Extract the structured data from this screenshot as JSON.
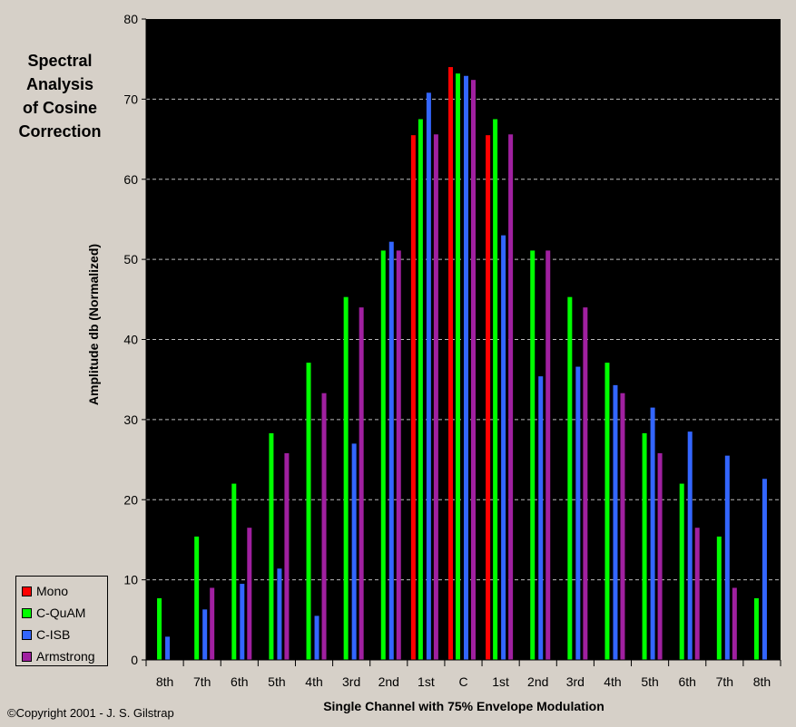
{
  "chart_data": {
    "type": "bar",
    "title_lines": [
      "Spectral",
      "Analysis",
      "of Cosine",
      "Correction"
    ],
    "xlabel": "Single Channel with 75% Envelope Modulation",
    "ylabel": "Amplitude db (Normalized)",
    "ylim": [
      0,
      80
    ],
    "yticks": [
      0,
      10,
      20,
      30,
      40,
      50,
      60,
      70,
      80
    ],
    "grid": true,
    "legend_position": "bottom-left",
    "categories": [
      "8th",
      "7th",
      "6th",
      "5th",
      "4th",
      "3rd",
      "2nd",
      "1st",
      "C",
      "1st",
      "2nd",
      "3rd",
      "4th",
      "5th",
      "6th",
      "7th",
      "8th"
    ],
    "series": [
      {
        "name": "Mono",
        "color": "#ff0000",
        "values": [
          null,
          null,
          null,
          null,
          null,
          null,
          null,
          65.5,
          74,
          65.5,
          null,
          null,
          null,
          null,
          null,
          null,
          null
        ]
      },
      {
        "name": "C-QuAM",
        "color": "#00ff00",
        "values": [
          7.7,
          15.4,
          22,
          28.3,
          37.1,
          45.3,
          51.1,
          67.5,
          73.2,
          67.5,
          51.1,
          45.3,
          37.1,
          28.3,
          22,
          15.4,
          7.7
        ]
      },
      {
        "name": "C-ISB",
        "color": "#3366ff",
        "values": [
          2.9,
          6.3,
          9.5,
          11.4,
          5.5,
          27,
          52.2,
          70.8,
          72.9,
          53,
          35.4,
          36.6,
          34.3,
          31.5,
          28.5,
          25.5,
          22.6
        ]
      },
      {
        "name": "Armstrong",
        "color": "#a020a0",
        "values": [
          null,
          9,
          16.5,
          25.8,
          33.3,
          44,
          51.1,
          65.6,
          72.4,
          65.6,
          51.1,
          44,
          33.3,
          25.8,
          16.5,
          9,
          null
        ]
      }
    ]
  },
  "copyright": "©Copyright 2001 - J. S. Gilstrap"
}
